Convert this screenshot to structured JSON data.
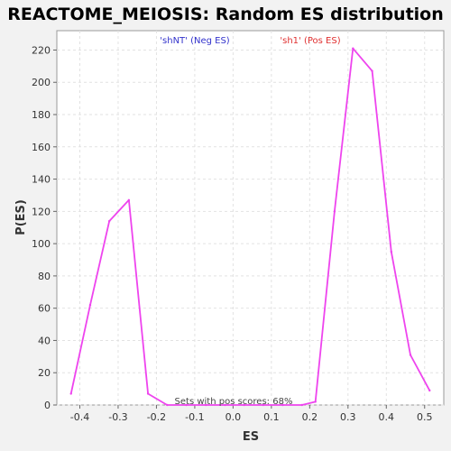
{
  "chart_data": {
    "type": "line",
    "title": "REACTOME_MEIOSIS: Random ES distribution",
    "xlabel": "ES",
    "ylabel": "P(ES)",
    "xlim": [
      -0.46,
      0.55
    ],
    "ylim": [
      0,
      232
    ],
    "x_ticks": [
      -0.4,
      -0.3,
      -0.2,
      -0.1,
      0.0,
      0.1,
      0.2,
      0.3,
      0.4,
      0.5
    ],
    "x_tick_labels": [
      "-0.4",
      "-0.3",
      "-0.2",
      "-0.1",
      "0.0",
      "0.1",
      "0.2",
      "0.3",
      "0.4",
      "0.5"
    ],
    "y_ticks": [
      0,
      20,
      40,
      60,
      80,
      100,
      120,
      140,
      160,
      180,
      200,
      220
    ],
    "y_tick_labels": [
      "0",
      "20",
      "40",
      "60",
      "80",
      "100",
      "120",
      "140",
      "160",
      "180",
      "200",
      "220"
    ],
    "grid": true,
    "series": [
      {
        "color": "#ee44ee",
        "x": [
          -0.423,
          -0.373,
          -0.323,
          -0.272,
          -0.222,
          -0.172,
          -0.122,
          -0.071,
          -0.021,
          0.029,
          0.079,
          0.13,
          0.18,
          0.215,
          0.265,
          0.313,
          0.363,
          0.413,
          0.463,
          0.513
        ],
        "y": [
          7,
          62,
          114,
          127,
          7,
          0,
          0,
          0,
          0,
          0,
          0,
          0,
          0,
          2,
          120,
          221,
          207,
          95,
          31,
          9
        ]
      }
    ],
    "legend": [
      {
        "label": "'shNT' (Neg ES)",
        "color": "#3333cc",
        "position": "top-left"
      },
      {
        "label": "'sh1' (Pos ES)",
        "color": "#e03030",
        "position": "top-right"
      }
    ],
    "annotation": "Sets with pos scores: 68%"
  }
}
